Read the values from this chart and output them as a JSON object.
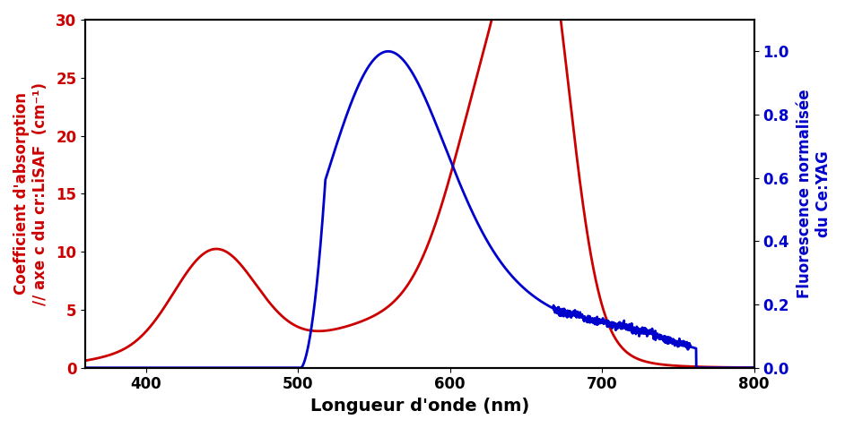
{
  "red_color": "#CC0000",
  "blue_color": "#0000CC",
  "xlabel": "Longueur d'onde (nm)",
  "ylabel_left": "Coefficient d'absorption\n// axe c du cr:LiSAF  (cm⁻¹)",
  "ylabel_right": "Fluorescence normalisée\ndu Ce:YAG",
  "xlim": [
    360,
    800
  ],
  "ylim_left": [
    0,
    30
  ],
  "ylim_right": [
    0,
    1.1
  ],
  "xticks": [
    400,
    500,
    600,
    700,
    800
  ],
  "yticks_left": [
    0,
    5,
    10,
    15,
    20,
    25,
    30
  ],
  "yticks_right": [
    0.0,
    0.2,
    0.4,
    0.6,
    0.8,
    1.0
  ],
  "xlabel_fontsize": 14,
  "ylabel_fontsize": 12,
  "tick_fontsize": 12,
  "linewidth": 2.0
}
